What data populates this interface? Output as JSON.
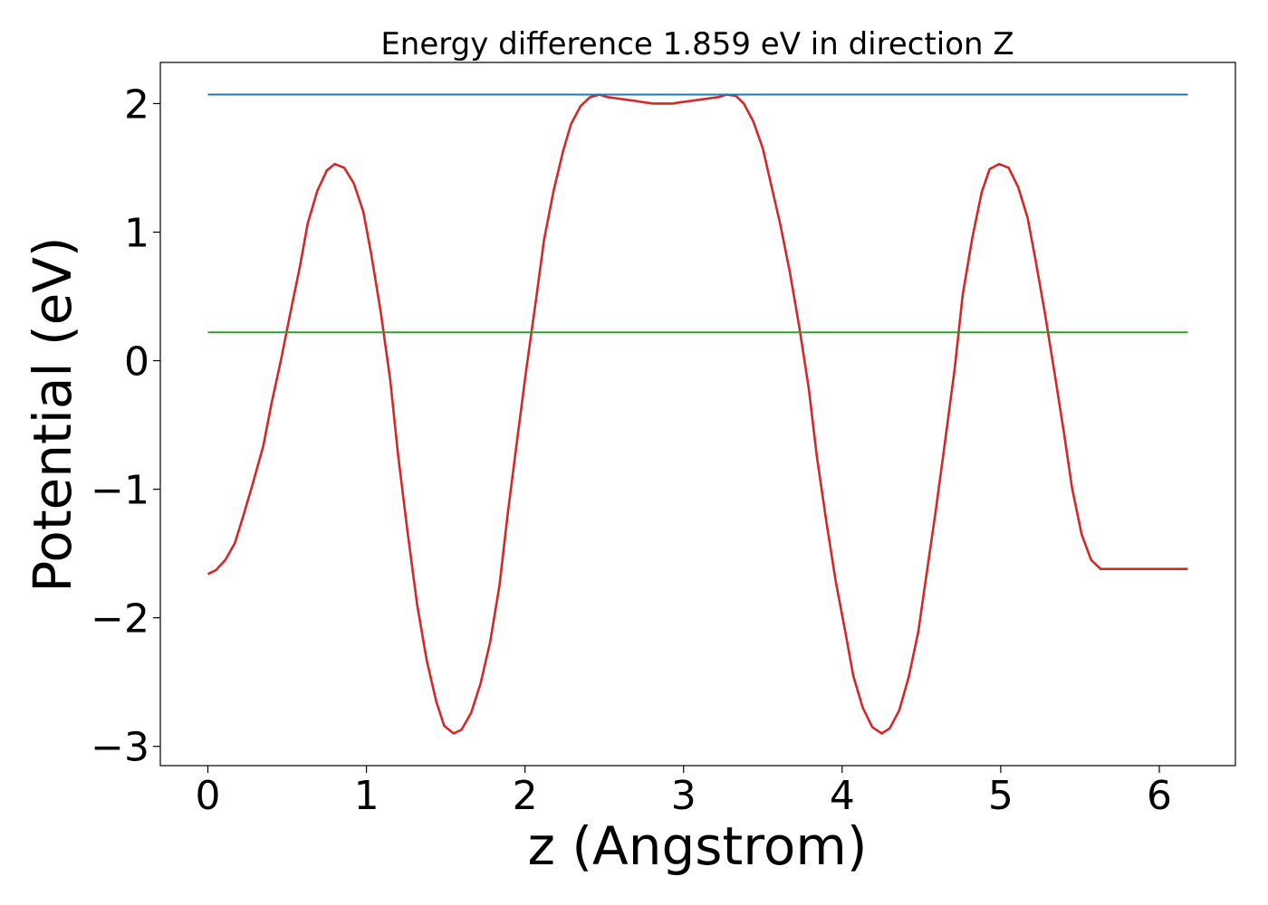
{
  "chart_data": {
    "type": "line",
    "title": "Energy difference 1.859 eV in direction Z",
    "xlabel": "z (Angstrom)",
    "ylabel": "Potential (eV)",
    "xlim": [
      -0.3,
      6.48
    ],
    "ylim": [
      -3.15,
      2.32
    ],
    "xticks": [
      0,
      1,
      2,
      3,
      4,
      5,
      6
    ],
    "xtick_labels": [
      "0",
      "1",
      "2",
      "3",
      "4",
      "5",
      "6"
    ],
    "yticks": [
      -3,
      -2,
      -1,
      0,
      1,
      2
    ],
    "ytick_labels": [
      "−3",
      "−2",
      "−1",
      "0",
      "1",
      "2"
    ],
    "grid": false,
    "series": [
      {
        "color": "#d62728",
        "x": [
          0.0,
          0.05,
          0.11,
          0.17,
          0.22,
          0.28,
          0.35,
          0.4,
          0.46,
          0.52,
          0.58,
          0.63,
          0.69,
          0.75,
          0.8,
          0.86,
          0.92,
          0.98,
          1.03,
          1.09,
          1.15,
          1.2,
          1.26,
          1.32,
          1.38,
          1.44,
          1.49,
          1.55,
          1.6,
          1.66,
          1.72,
          1.78,
          1.84,
          1.89,
          1.95,
          2.01,
          2.07,
          2.12,
          2.18,
          2.24,
          2.29,
          2.35,
          2.41,
          2.47,
          2.52,
          2.58,
          2.64,
          2.7,
          2.75,
          2.81,
          2.87,
          2.93,
          2.98,
          3.04,
          3.1,
          3.16,
          3.22,
          3.27,
          3.33,
          3.38,
          3.44,
          3.5,
          3.55,
          3.61,
          3.67,
          3.73,
          3.79,
          3.84,
          3.9,
          3.96,
          4.02,
          4.07,
          4.13,
          4.19,
          4.25,
          4.3,
          4.36,
          4.42,
          4.48,
          4.53,
          4.59,
          4.65,
          4.71,
          4.76,
          4.82,
          4.88,
          4.93,
          4.99,
          5.05,
          5.11,
          5.17,
          5.22,
          5.28,
          5.34,
          5.4,
          5.45,
          5.51,
          5.57,
          5.63,
          5.68,
          5.74,
          5.8,
          5.86,
          5.91,
          5.97,
          6.03,
          6.09,
          6.14,
          6.18
        ],
        "values": [
          -1.66,
          -1.63,
          -1.55,
          -1.42,
          -1.22,
          -0.97,
          -0.66,
          -0.34,
          0.0,
          0.37,
          0.73,
          1.07,
          1.32,
          1.48,
          1.53,
          1.5,
          1.38,
          1.16,
          0.83,
          0.38,
          -0.15,
          -0.74,
          -1.34,
          -1.9,
          -2.33,
          -2.65,
          -2.84,
          -2.9,
          -2.87,
          -2.74,
          -2.51,
          -2.19,
          -1.74,
          -1.2,
          -0.62,
          -0.05,
          0.48,
          0.94,
          1.32,
          1.63,
          1.84,
          1.98,
          2.05,
          2.07,
          2.05,
          2.04,
          2.03,
          2.02,
          2.01,
          2.0,
          2.0,
          2.0,
          2.01,
          2.02,
          2.03,
          2.04,
          2.05,
          2.07,
          2.06,
          2.0,
          1.86,
          1.65,
          1.38,
          1.06,
          0.69,
          0.26,
          -0.22,
          -0.74,
          -1.25,
          -1.72,
          -2.11,
          -2.45,
          -2.7,
          -2.85,
          -2.9,
          -2.86,
          -2.72,
          -2.46,
          -2.11,
          -1.68,
          -1.17,
          -0.62,
          -0.06,
          0.51,
          0.95,
          1.31,
          1.49,
          1.53,
          1.5,
          1.35,
          1.11,
          0.78,
          0.36,
          -0.1,
          -0.57,
          -0.99,
          -1.35,
          -1.55,
          -1.62,
          -1.62,
          -1.62,
          -1.62,
          -1.62,
          -1.62,
          -1.62,
          -1.62,
          -1.62,
          -1.62,
          -1.62
        ]
      },
      {
        "color": "#1f77b4",
        "x": [
          0.0,
          6.18
        ],
        "values": [
          2.07,
          2.07
        ]
      },
      {
        "color": "#2ca02c",
        "x": [
          0.0,
          6.18
        ],
        "values": [
          0.22,
          0.22
        ]
      }
    ]
  }
}
